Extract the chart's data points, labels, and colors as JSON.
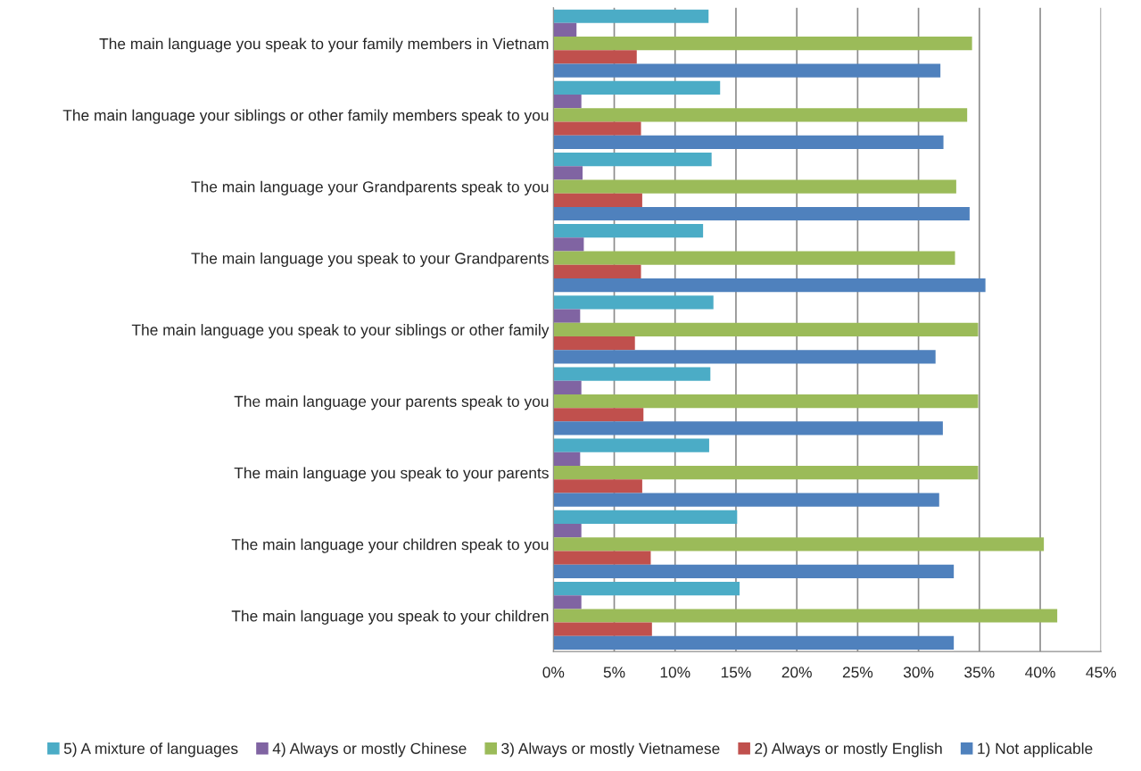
{
  "chart_data": {
    "type": "bar",
    "orientation": "horizontal",
    "categories": [
      "The main language you speak to your family members in Vietnam",
      "The main language your siblings or other family members speak to you",
      "The main language your Grandparents speak to you",
      "The main language you speak to your Grandparents",
      "The main language you speak to your siblings or other family",
      "The main language your parents speak to you",
      "The main language you speak to your parents",
      "The main language your children speak to you",
      "The main language you speak to your children"
    ],
    "series": [
      {
        "name": "5) A mixture of languages",
        "color": "#4bacc6",
        "values": [
          12.75,
          13.7,
          13.0,
          12.3,
          13.15,
          12.9,
          12.8,
          15.1,
          15.3
        ]
      },
      {
        "name": "4) Always or mostly Chinese",
        "color": "#8064a2",
        "values": [
          1.9,
          2.3,
          2.4,
          2.5,
          2.2,
          2.3,
          2.2,
          2.3,
          2.3
        ]
      },
      {
        "name": "3) Always or mostly Vietnamese",
        "color": "#9bbb59",
        "values": [
          34.4,
          34.0,
          33.1,
          33.0,
          34.9,
          34.9,
          34.9,
          40.3,
          41.4
        ]
      },
      {
        "name": "2) Always or mostly English",
        "color": "#c0504d",
        "values": [
          6.85,
          7.2,
          7.3,
          7.2,
          6.7,
          7.4,
          7.3,
          8.0,
          8.1
        ]
      },
      {
        "name": "1) Not applicable",
        "color": "#4f81bd",
        "values": [
          31.8,
          32.05,
          34.2,
          35.5,
          31.4,
          32.0,
          31.7,
          32.9,
          32.9
        ]
      }
    ],
    "xlim": [
      0,
      45
    ],
    "xticks": [
      {
        "value": 0,
        "label": "0%"
      },
      {
        "value": 5,
        "label": "5%"
      },
      {
        "value": 10,
        "label": "10%"
      },
      {
        "value": 15,
        "label": "15%"
      },
      {
        "value": 20,
        "label": "20%"
      },
      {
        "value": 25,
        "label": "25%"
      },
      {
        "value": 30,
        "label": "30%"
      },
      {
        "value": 35,
        "label": "35%"
      },
      {
        "value": 40,
        "label": "40%"
      },
      {
        "value": 45,
        "label": "45%"
      }
    ],
    "grid": "x",
    "legend": "bottom"
  }
}
